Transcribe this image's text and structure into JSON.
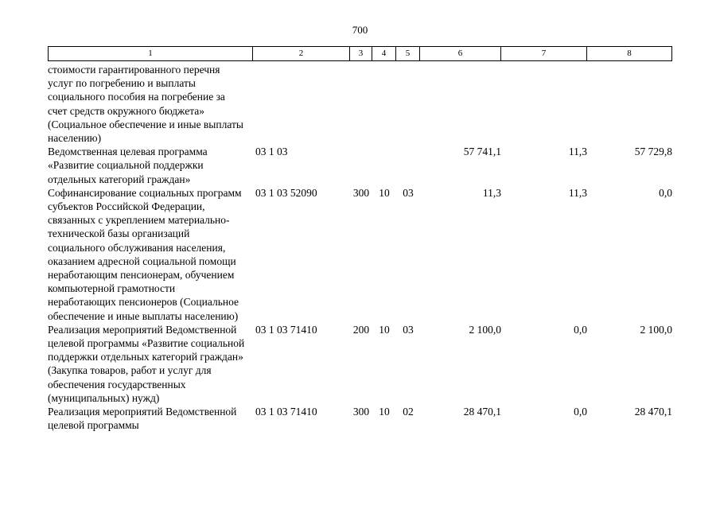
{
  "page_number": "700",
  "table": {
    "header": {
      "c1": "1",
      "c2": "2",
      "c3": "3",
      "c4": "4",
      "c5": "5",
      "c6": "6",
      "c7": "7",
      "c8": "8"
    },
    "rows": [
      {
        "c1": "стоимости гарантированного перечня услуг по погребению и выплаты социального пособия на погребение за счет средств окружного бюджета» (Социальное обеспечение и иные выплаты населению)",
        "c2": "",
        "c3": "",
        "c4": "",
        "c5": "",
        "c6": "",
        "c7": "",
        "c8": ""
      },
      {
        "c1": "Ведомственная целевая программа «Развитие социальной поддержки отдельных категорий граждан»",
        "c2": "03 1 03",
        "c3": "",
        "c4": "",
        "c5": "",
        "c6": "57 741,1",
        "c7": "11,3",
        "c8": "57 729,8"
      },
      {
        "c1": "Софинансирование социальных программ субъектов Российской Федерации, связанных с укреплением материально-технической базы организаций социального обслуживания населения, оказанием адресной социальной помощи неработающим пенсионерам, обучением компьютерной грамотности неработающих пенсионеров (Социальное обеспечение и иные выплаты населению)",
        "c2": "03 1 03 52090",
        "c3": "300",
        "c4": "10",
        "c5": "03",
        "c6": "11,3",
        "c7": "11,3",
        "c8": "0,0"
      },
      {
        "c1": "Реализация мероприятий Ведомственной целевой программы «Развитие социальной поддержки отдельных категорий граждан» (Закупка товаров, работ и услуг для обеспечения государственных (муниципальных) нужд)",
        "c2": "03 1 03 71410",
        "c3": "200",
        "c4": "10",
        "c5": "03",
        "c6": "2 100,0",
        "c7": "0,0",
        "c8": "2 100,0"
      },
      {
        "c1": "Реализация мероприятий Ведомственной целевой программы",
        "c2": "03 1 03 71410",
        "c3": "300",
        "c4": "10",
        "c5": "02",
        "c6": "28 470,1",
        "c7": "0,0",
        "c8": "28 470,1"
      }
    ]
  }
}
